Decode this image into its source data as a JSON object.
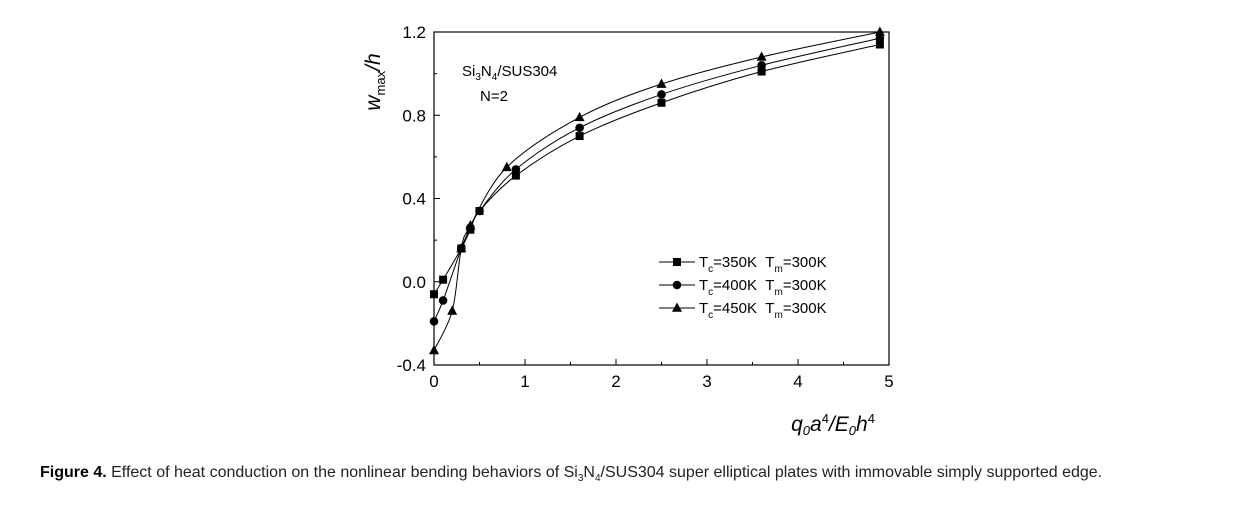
{
  "chart_data": {
    "type": "line",
    "title": "",
    "xlabel": "q0a4/E0h4",
    "ylabel": "wmax/h",
    "xlim": [
      0,
      5
    ],
    "ylim": [
      -0.4,
      1.2
    ],
    "xticks": [
      "0",
      "1",
      "2",
      "3",
      "4",
      "5"
    ],
    "yticks": [
      "-0.4",
      "0.0",
      "0.4",
      "0.8",
      "1.2"
    ],
    "annotation": {
      "line1": "Si3N4/SUS304",
      "line2": "N=2"
    },
    "legend_position": "lower-right",
    "series": [
      {
        "name": "Tc=350K  Tm=300K",
        "marker": "square",
        "x": [
          0,
          0.1,
          0.3,
          0.4,
          0.5,
          0.9,
          1.6,
          2.5,
          3.6,
          4.9
        ],
        "y": [
          -0.06,
          0.01,
          0.16,
          0.25,
          0.34,
          0.51,
          0.7,
          0.86,
          1.01,
          1.14
        ]
      },
      {
        "name": "Tc=400K  Tm=300K",
        "marker": "circle",
        "x": [
          0,
          0.1,
          0.3,
          0.4,
          0.5,
          0.9,
          1.6,
          2.5,
          3.6,
          4.9
        ],
        "y": [
          -0.19,
          -0.09,
          0.16,
          0.26,
          0.34,
          0.54,
          0.74,
          0.9,
          1.04,
          1.17
        ]
      },
      {
        "name": "Tc=450K  Tm=300K",
        "marker": "triangle",
        "x": [
          0,
          0.2,
          0.3,
          0.4,
          0.8,
          1.6,
          2.5,
          3.6,
          4.9
        ],
        "y": [
          -0.33,
          -0.14,
          0.16,
          0.27,
          0.55,
          0.79,
          0.95,
          1.08,
          1.2
        ]
      }
    ]
  },
  "caption": {
    "label": "Figure 4.",
    "text_before": " Effect of heat conduction on the nonlinear bending behaviors of Si",
    "sub1": "3",
    "mid": "N",
    "sub2": "4",
    "text_after": "/SUS304 super elliptical plates with immovable simply supported edge."
  }
}
